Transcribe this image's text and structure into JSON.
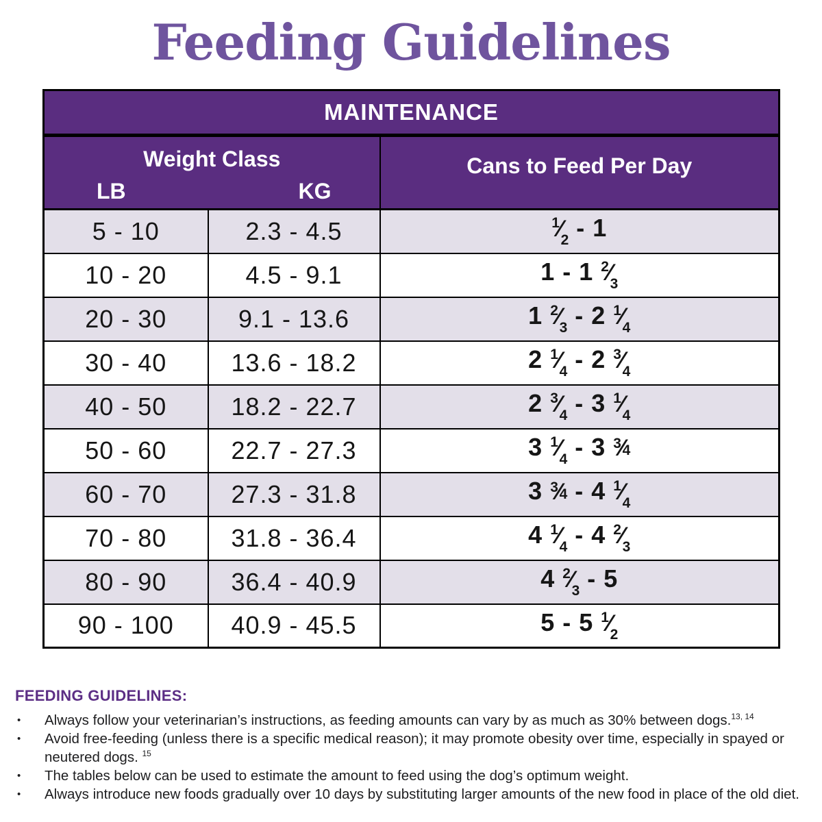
{
  "page": {
    "title": "Feeding Guidelines"
  },
  "colors": {
    "header_purple": "#5a2d80",
    "row_lavender": "#e3dfe9",
    "title_purple": "#6f549e",
    "heading_purple": "#5c2e85",
    "border": "#000000",
    "text": "#1d1d1f"
  },
  "table": {
    "header": "MAINTENANCE",
    "weight_class_label": "Weight Class",
    "lb_label": "LB",
    "kg_label": "KG",
    "cans_label": "Cans to Feed Per Day",
    "rows": [
      {
        "lb": "5 - 10",
        "kg": "2.3 - 4.5",
        "cans": [
          {
            "f": "1/2"
          },
          {
            "t": " - 1"
          }
        ]
      },
      {
        "lb": "10 - 20",
        "kg": "4.5 - 9.1",
        "cans": [
          {
            "t": "1 - 1 "
          },
          {
            "f": "2/3"
          }
        ]
      },
      {
        "lb": "20 - 30",
        "kg": "9.1 - 13.6",
        "cans": [
          {
            "t": "1 "
          },
          {
            "f": "2/3"
          },
          {
            "t": " - 2 "
          },
          {
            "f": "1/4"
          }
        ]
      },
      {
        "lb": "30 - 40",
        "kg": "13.6 - 18.2",
        "cans": [
          {
            "t": "2 "
          },
          {
            "f": "1/4"
          },
          {
            "t": " - 2 "
          },
          {
            "f": "3/4"
          }
        ]
      },
      {
        "lb": "40 - 50",
        "kg": "18.2 - 22.7",
        "cans": [
          {
            "t": "2 "
          },
          {
            "f": "3/4"
          },
          {
            "t": " - 3 "
          },
          {
            "f": "1/4"
          }
        ]
      },
      {
        "lb": "50 - 60",
        "kg": "22.7 - 27.3",
        "cans": [
          {
            "t": "3 "
          },
          {
            "f": "1/4"
          },
          {
            "t": " - 3 "
          },
          {
            "f": "3/4",
            "style": "inline"
          }
        ]
      },
      {
        "lb": "60 - 70",
        "kg": "27.3 - 31.8",
        "cans": [
          {
            "t": "3 "
          },
          {
            "f": "3/4",
            "style": "inline"
          },
          {
            "t": " - 4 "
          },
          {
            "f": "1/4"
          }
        ]
      },
      {
        "lb": "70 - 80",
        "kg": "31.8 - 36.4",
        "cans": [
          {
            "t": "4 "
          },
          {
            "f": "1/4"
          },
          {
            "t": " - 4 "
          },
          {
            "f": "2/3"
          }
        ]
      },
      {
        "lb": "80 - 90",
        "kg": "36.4 - 40.9",
        "cans": [
          {
            "t": "4 "
          },
          {
            "f": "2/3"
          },
          {
            "t": " - 5"
          }
        ]
      },
      {
        "lb": "90 - 100",
        "kg": "40.9 - 45.5",
        "cans": [
          {
            "t": "5 - 5 "
          },
          {
            "f": "1/2"
          }
        ]
      }
    ]
  },
  "guidelines": {
    "heading": "FEEDING GUIDELINES:",
    "bullet_char": "•",
    "bullets": [
      {
        "segments": [
          {
            "t": "Always follow your veterinarian’s instructions, as feeding amounts can vary by as much as 30% between dogs."
          },
          {
            "sup": "13, 14"
          }
        ]
      },
      {
        "segments": [
          {
            "t": "Avoid free-feeding (unless there is a specific medical reason); it may promote obesity over time, especially in spayed or neutered dogs. "
          },
          {
            "sup": "15"
          }
        ]
      },
      {
        "segments": [
          {
            "t": "The tables below can be used to estimate the amount to feed using the dog’s optimum weight."
          }
        ]
      },
      {
        "segments": [
          {
            "t": "Always introduce new foods gradually over 10 days by substituting larger amounts of the new food in place of the old diet."
          }
        ]
      }
    ]
  }
}
